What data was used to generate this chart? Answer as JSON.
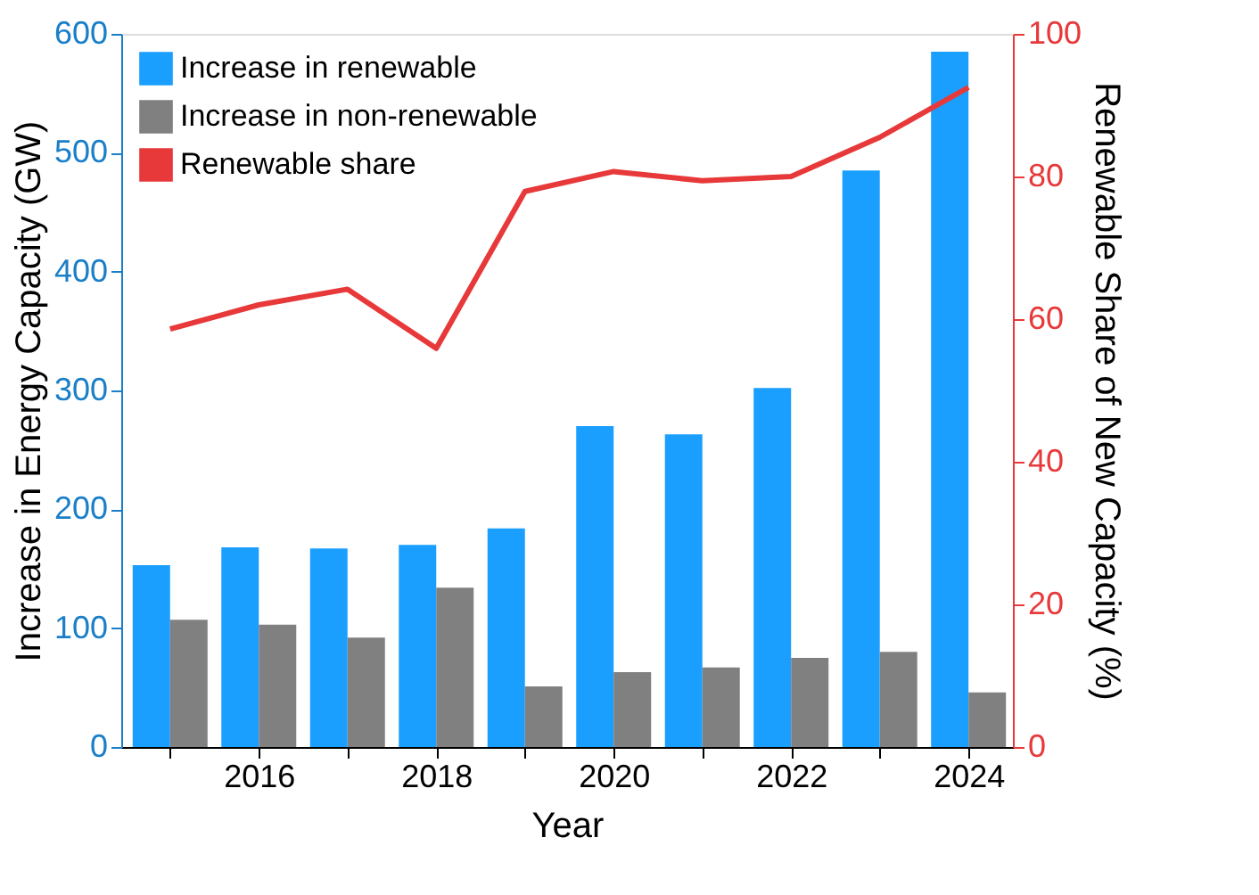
{
  "chart_data": {
    "type": "bar",
    "xlabel": "Year",
    "ylabel": "Increase in Energy Capacity (GW)",
    "y2label": "Renewable Share of New Capacity (%)",
    "x": [
      2015,
      2016,
      2017,
      2018,
      2019,
      2020,
      2021,
      2022,
      2023,
      2024
    ],
    "xlim": [
      2014.55,
      2024.4
    ],
    "xticks": [
      {
        "value": 2015,
        "label": null
      },
      2016,
      {
        "value": 2017,
        "label": null
      },
      2018,
      {
        "value": 2019,
        "label": null
      },
      2020,
      {
        "value": 2021,
        "label": null
      },
      2022,
      {
        "value": 2023,
        "label": null
      },
      2024
    ],
    "ylim": [
      0,
      600
    ],
    "yticks": [
      0,
      100,
      200,
      300,
      400,
      500,
      600
    ],
    "y2lim": [
      0,
      100
    ],
    "y2ticks": [
      0,
      20,
      40,
      60,
      80,
      100
    ],
    "series": [
      {
        "name": "Increase in renewable",
        "color": "#1a9fff",
        "values": [
          153,
          168,
          167,
          170,
          184,
          270,
          263,
          302,
          485,
          585
        ]
      },
      {
        "name": "Increase in non-renewable",
        "color": "#808080",
        "values": [
          107,
          103,
          92,
          134,
          51,
          63,
          67,
          75,
          80,
          46
        ]
      },
      {
        "name": "Renewable share",
        "type": "line",
        "axis": "y2",
        "color": "#e8393a",
        "values": [
          58.6,
          62,
          64.2,
          55.9,
          77.9,
          80.7,
          79.4,
          80,
          85.5,
          92.5
        ]
      }
    ],
    "grid": false,
    "legend": "top left",
    "marker": "none",
    "line_style": "solid"
  }
}
